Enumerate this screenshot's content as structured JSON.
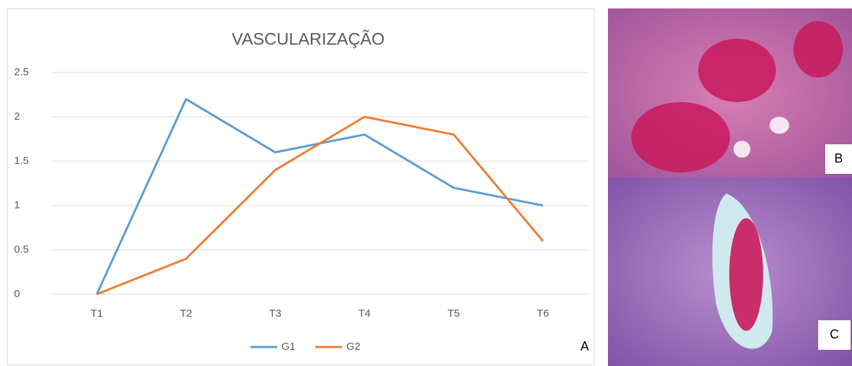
{
  "chart_data": {
    "type": "line",
    "title": "VASCULARIZAÇÃO",
    "categories": [
      "T1",
      "T2",
      "T3",
      "T4",
      "T5",
      "T6"
    ],
    "series": [
      {
        "name": "G1",
        "color": "#5b9bd5",
        "values": [
          0,
          2.2,
          1.6,
          1.8,
          1.2,
          1.0
        ]
      },
      {
        "name": "G2",
        "color": "#ed7d31",
        "values": [
          0,
          0.4,
          1.4,
          2.0,
          1.8,
          0.6
        ]
      }
    ],
    "ylim": [
      0,
      2.5
    ],
    "yticks": [
      0,
      0.5,
      1,
      1.5,
      2,
      2.5
    ],
    "grid": true,
    "legend": "bottom"
  },
  "panels": {
    "a": "A",
    "b": "B",
    "c": "C"
  }
}
